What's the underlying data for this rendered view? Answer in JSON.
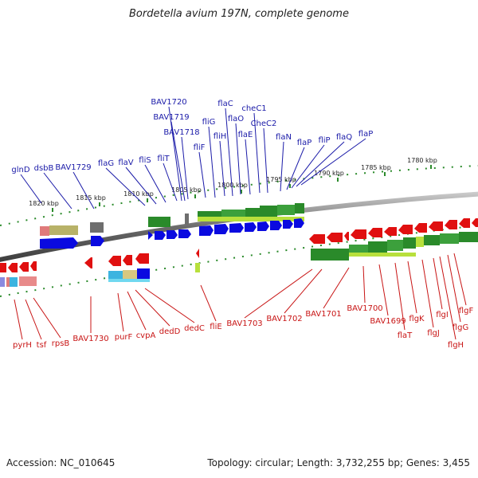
{
  "title": "Bordetella avium 197N, complete genome",
  "footer": {
    "accession": "Accession: NC_010645",
    "topology": "Topology: circular; Length: 3,732,255 bp; Genes: 3,455"
  },
  "scale": {
    "ticks": [
      {
        "label": "1820 kbp",
        "kbp": 1820
      },
      {
        "label": "1815 kbp",
        "kbp": 1815
      },
      {
        "label": "1810 kbp",
        "kbp": 1810
      },
      {
        "label": "1805 kbp",
        "kbp": 1805
      },
      {
        "label": "1800 kbp",
        "kbp": 1800
      },
      {
        "label": "1795 kbp",
        "kbp": 1795
      },
      {
        "label": "1790 kbp",
        "kbp": 1790
      },
      {
        "label": "1785 kbp",
        "kbp": 1785
      },
      {
        "label": "1780 kbp",
        "kbp": 1780
      }
    ]
  },
  "genes_top": [
    {
      "label": "glnD"
    },
    {
      "label": "dsbB"
    },
    {
      "label": "BAV1729"
    },
    {
      "label": "flaG"
    },
    {
      "label": "flaV"
    },
    {
      "label": "fliS"
    },
    {
      "label": "fliT"
    },
    {
      "label": "BAV1720"
    },
    {
      "label": "BAV1719"
    },
    {
      "label": "BAV1718"
    },
    {
      "label": "fliF"
    },
    {
      "label": "fliG"
    },
    {
      "label": "fliH"
    },
    {
      "label": "flaC"
    },
    {
      "label": "flaO"
    },
    {
      "label": "flaE"
    },
    {
      "label": "cheC1"
    },
    {
      "label": "CheC2"
    },
    {
      "label": "flaN"
    },
    {
      "label": "flaP"
    },
    {
      "label": "fliP"
    },
    {
      "label": "flaQ"
    },
    {
      "label": "flaP"
    }
  ],
  "genes_bottom": [
    {
      "label": "pyrH"
    },
    {
      "label": "tsf"
    },
    {
      "label": "rpsB"
    },
    {
      "label": "BAV1730"
    },
    {
      "label": "purF"
    },
    {
      "label": "cvpA"
    },
    {
      "label": "dedD"
    },
    {
      "label": "dedC"
    },
    {
      "label": "fliE"
    },
    {
      "label": "BAV1703"
    },
    {
      "label": "BAV1702"
    },
    {
      "label": "BAV1701"
    },
    {
      "label": "BAV1700"
    },
    {
      "label": "BAV1699"
    },
    {
      "label": "flaT"
    },
    {
      "label": "flgK"
    },
    {
      "label": "flgJ"
    },
    {
      "label": "flgI"
    },
    {
      "label": "flgH"
    },
    {
      "label": "flgG"
    },
    {
      "label": "flgF"
    }
  ]
}
